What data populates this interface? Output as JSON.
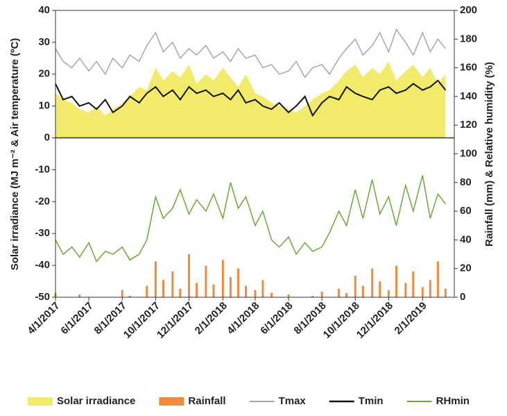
{
  "chart_data": {
    "type": "line",
    "ylabel": "Solar irradiance (MJ m⁻² & Air temperature (ºC)",
    "y2label": "Rainfall (mm) & Relative humidity (%)",
    "x": [
      "4/1/2017",
      "4/15/2017",
      "5/1/2017",
      "5/15/2017",
      "6/1/2017",
      "6/15/2017",
      "7/1/2017",
      "7/15/2017",
      "8/1/2017",
      "8/15/2017",
      "9/1/2017",
      "9/15/2017",
      "10/1/2017",
      "10/15/2017",
      "11/1/2017",
      "11/15/2017",
      "12/1/2017",
      "12/15/2017",
      "1/1/2018",
      "1/15/2018",
      "2/1/2018",
      "2/15/2018",
      "3/1/2018",
      "3/15/2018",
      "4/1/2018",
      "4/15/2018",
      "5/1/2018",
      "5/15/2018",
      "6/1/2018",
      "6/15/2018",
      "7/1/2018",
      "7/15/2018",
      "8/1/2018",
      "8/15/2018",
      "9/1/2018",
      "9/15/2018",
      "10/1/2018",
      "10/15/2018",
      "11/1/2018",
      "11/15/2018",
      "12/1/2018",
      "12/15/2018",
      "1/1/2019",
      "1/15/2019",
      "2/1/2019",
      "2/15/2019",
      "3/1/2019",
      "3/15/2019"
    ],
    "xlim": [
      "4/1/2017",
      "3/31/2019"
    ],
    "xticks": [
      "4/1/2017",
      "6/1/2017",
      "8/1/2017",
      "10/1/2017",
      "12/1/2017",
      "2/1/2018",
      "4/1/2018",
      "6/1/2018",
      "8/1/2018",
      "10/1/2018",
      "12/1/2018",
      "2/1/2019"
    ],
    "ylim": [
      -50,
      40
    ],
    "yticks": [
      -50,
      -40,
      -30,
      -20,
      -10,
      0,
      10,
      20,
      30,
      40
    ],
    "y2lim": [
      0,
      200
    ],
    "y2ticks": [
      0,
      20,
      40,
      60,
      80,
      100,
      120,
      140,
      160,
      180,
      200
    ],
    "series": [
      {
        "name": "Solar irradiance",
        "color": "#f2ea6b",
        "style": "area",
        "values": [
          14,
          12,
          11,
          9,
          8,
          10,
          7,
          9,
          11,
          13,
          16,
          15,
          22,
          18,
          21,
          19,
          23,
          17,
          20,
          18,
          22,
          19,
          16,
          20,
          14,
          13,
          11,
          10,
          9,
          8,
          10,
          12,
          14,
          15,
          18,
          21,
          23,
          19,
          22,
          20,
          24,
          18,
          21,
          23,
          19,
          22,
          17,
          20
        ]
      },
      {
        "name": "Rainfall",
        "color": "#f08a3c",
        "style": "bar",
        "axis": "y2",
        "values": [
          3,
          0,
          0,
          2,
          0,
          0,
          0,
          0,
          5,
          1,
          0,
          8,
          25,
          12,
          18,
          6,
          30,
          10,
          22,
          9,
          26,
          14,
          20,
          8,
          5,
          12,
          3,
          0,
          2,
          0,
          0,
          1,
          4,
          0,
          6,
          3,
          15,
          8,
          20,
          11,
          5,
          22,
          10,
          18,
          7,
          12,
          25,
          6
        ]
      },
      {
        "name": "Tmax",
        "color": "#a6a6a6",
        "style": "line",
        "values": [
          28,
          24,
          22,
          25,
          21,
          24,
          20,
          25,
          22,
          26,
          24,
          29,
          33,
          27,
          30,
          25,
          28,
          26,
          29,
          25,
          27,
          24,
          28,
          25,
          26,
          22,
          23,
          20,
          21,
          24,
          19,
          22,
          23,
          20,
          25,
          28,
          31,
          26,
          29,
          33,
          27,
          34,
          30,
          26,
          33,
          27,
          31,
          28
        ]
      },
      {
        "name": "Tmin",
        "color": "#111111",
        "style": "line",
        "values": [
          17,
          12,
          13,
          10,
          11,
          9,
          12,
          8,
          10,
          13,
          11,
          14,
          16,
          13,
          15,
          12,
          16,
          14,
          15,
          13,
          14,
          12,
          15,
          11,
          12,
          10,
          9,
          11,
          8,
          10,
          13,
          7,
          11,
          13,
          12,
          16,
          14,
          13,
          12,
          15,
          16,
          14,
          15,
          17,
          15,
          16,
          18,
          15
        ]
      },
      {
        "name": "RHmin",
        "color": "#6aa83a",
        "style": "line",
        "axis": "y2",
        "values": [
          40,
          30,
          35,
          28,
          38,
          25,
          32,
          30,
          35,
          26,
          30,
          40,
          70,
          55,
          62,
          75,
          58,
          68,
          60,
          72,
          55,
          80,
          62,
          70,
          50,
          60,
          40,
          35,
          42,
          30,
          38,
          32,
          35,
          45,
          60,
          50,
          75,
          55,
          82,
          58,
          70,
          50,
          78,
          60,
          85,
          55,
          72,
          65
        ]
      }
    ]
  }
}
